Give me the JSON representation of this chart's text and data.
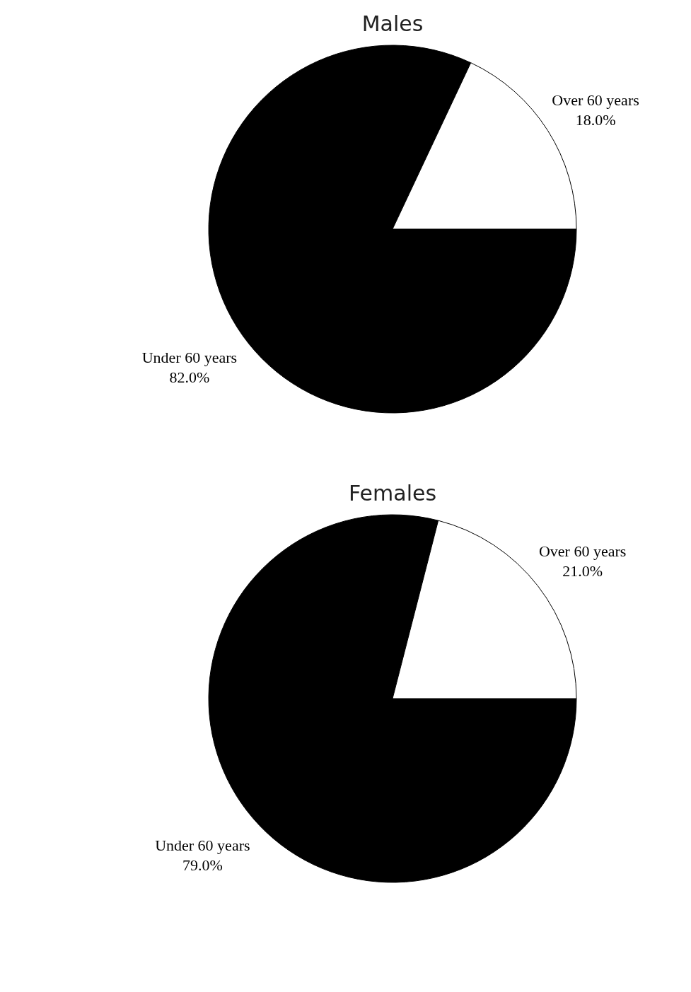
{
  "chart_data": [
    {
      "type": "pie",
      "title": "Males",
      "categories": [
        "Under 60 years",
        "Over 60 years"
      ],
      "values": [
        82.0,
        18.0
      ],
      "value_labels": [
        "82.0%",
        "18.0%"
      ],
      "colors": [
        "#000000",
        "#ffffff"
      ]
    },
    {
      "type": "pie",
      "title": "Females",
      "categories": [
        "Under 60 years",
        "Over 60 years"
      ],
      "values": [
        79.0,
        21.0
      ],
      "value_labels": [
        "79.0%",
        "21.0%"
      ],
      "colors": [
        "#000000",
        "#ffffff"
      ]
    }
  ]
}
